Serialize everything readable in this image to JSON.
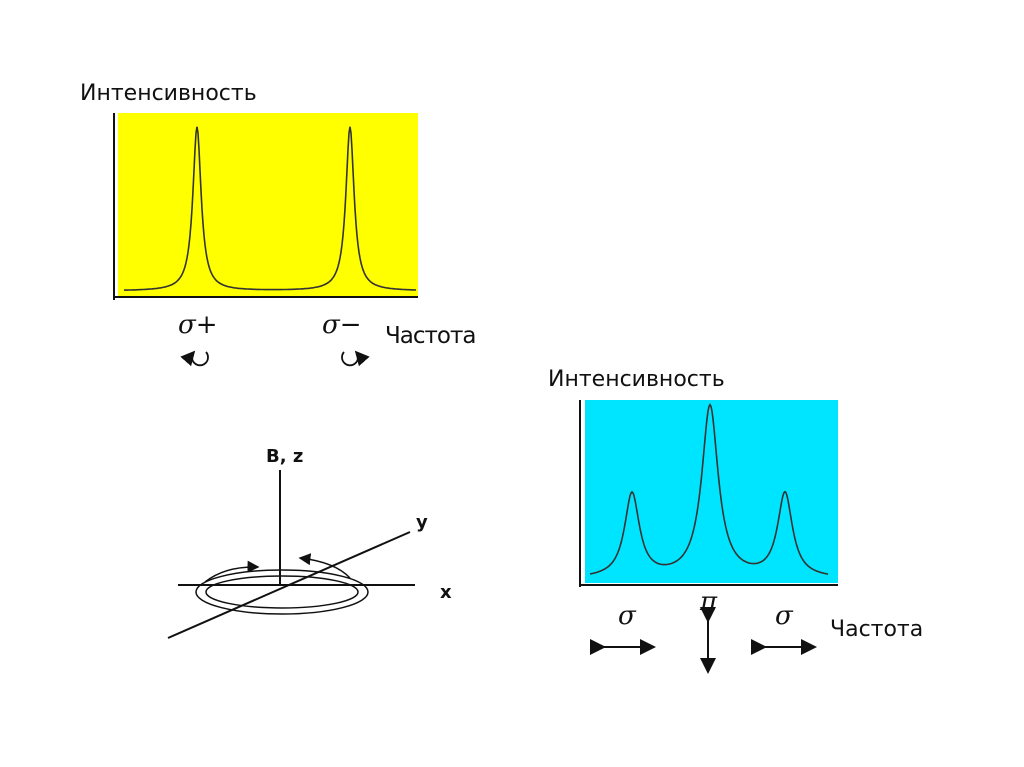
{
  "top_plot": {
    "y_label": "Интенсивность",
    "peaks": [
      "σ+",
      "σ−"
    ],
    "x_label": "Частота"
  },
  "bottom_plot": {
    "y_label": "Интенсивность",
    "peaks": [
      "σ",
      "π",
      "σ"
    ],
    "x_label": "Частота"
  },
  "axes_diagram": {
    "z_label": "B, z",
    "y_label": "y",
    "x_label": "x"
  }
}
